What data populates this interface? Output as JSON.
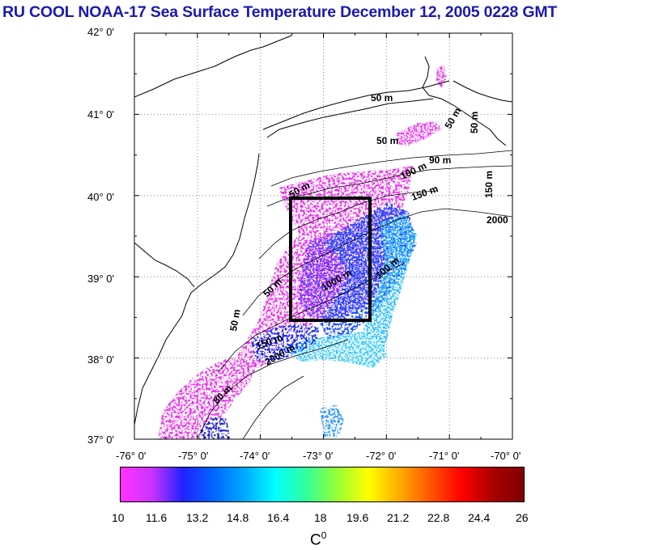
{
  "title": "RU COOL  NOAA-17 Sea Surface Temperature December 12, 2005 0228 GMT",
  "lat_labels": [
    "42° 0'",
    "41° 0'",
    "40° 0'",
    "39° 0'",
    "38° 0'",
    "37° 0'"
  ],
  "lon_labels": [
    "-76° 0'",
    "-75° 0'",
    "-74° 0'",
    "-73° 0'",
    "-72° 0'",
    "-71° 0'",
    "-70° 0'"
  ],
  "lat_values": [
    42,
    41,
    40,
    39,
    38,
    37
  ],
  "lon_values": [
    -76,
    -75,
    -74,
    -73,
    -72,
    -71,
    -70
  ],
  "contour_labels": [
    "50 m",
    "50 m",
    "50 m",
    "90 m",
    "100 m",
    "150 m",
    "2000",
    "150 m",
    "50 m",
    "100 m",
    "1000 m",
    "50 m",
    "150 m",
    "2000 m",
    "50 m",
    "80 m",
    "50 m"
  ],
  "colorbar": {
    "ticks": [
      "10",
      "11.6",
      "13.2",
      "14.8",
      "16.4",
      "18",
      "19.6",
      "21.2",
      "22.8",
      "24.4",
      "26"
    ],
    "min": 10,
    "max": 26,
    "unit": "C",
    "unit_sup": "0",
    "stops": [
      "#ff33ff",
      "#cc33ff",
      "#2222ff",
      "#0066ff",
      "#00aaff",
      "#00ffff",
      "#33ff99",
      "#99ff33",
      "#ffff00",
      "#ffaa00",
      "#ff5500",
      "#ff0000",
      "#aa0000",
      "#800000"
    ]
  },
  "study_box": {
    "lon_min": -73.5,
    "lon_max": -72.25,
    "lat_min": 38.5,
    "lat_max": 40.0
  },
  "colors": {
    "title": "#1a1ab0",
    "frame": "#000000",
    "grid": "#777777"
  }
}
